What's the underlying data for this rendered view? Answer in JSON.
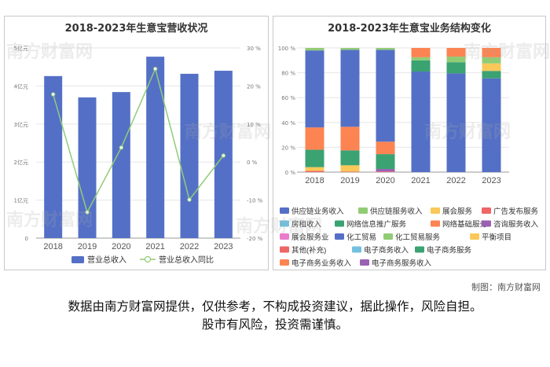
{
  "watermark": "南方财富网",
  "credit": "制图：南方财富网",
  "disclaimer": {
    "line1": "数据由南方财富网提供，仅供参考，不构成投资建议，据此操作，风险自担。",
    "line2": "股市有风险，投资需谨慎。"
  },
  "chart_data": [
    {
      "type": "bar",
      "title": "2018-2023年生意宝营收状况",
      "categories": [
        "2018",
        "2019",
        "2020",
        "2021",
        "2022",
        "2023"
      ],
      "series": [
        {
          "name": "营业总收入",
          "kind": "bar",
          "axis": "left",
          "color": "#5470c6",
          "values": [
            4.26,
            3.7,
            3.84,
            4.77,
            4.32,
            4.4
          ]
        },
        {
          "name": "营业总收入同比",
          "kind": "line",
          "axis": "right",
          "color": "#91cc75",
          "values": [
            17.8,
            -13.2,
            3.8,
            24.5,
            -9.9,
            1.7
          ]
        }
      ],
      "y_left": {
        "min": 0,
        "max": 5,
        "ticks": [
          "0",
          "1亿元",
          "2亿元",
          "3亿元",
          "4亿元",
          "5亿元"
        ]
      },
      "y_right": {
        "min": -20,
        "max": 30,
        "ticks": [
          "-20 %",
          "-10 %",
          "0 %",
          "10 %",
          "20 %",
          "30 %"
        ]
      },
      "grid": true,
      "legend_position": "bottom"
    },
    {
      "type": "bar",
      "stacked": true,
      "title": "2018-2023年生意宝业务结构变化",
      "categories": [
        "2018",
        "2019",
        "2020",
        "2021",
        "2022",
        "2023"
      ],
      "y": {
        "min": 0,
        "max": 100,
        "ticks": [
          "0 %",
          "20 %",
          "40 %",
          "60 %",
          "80 %",
          "100 %"
        ]
      },
      "series": [
        {
          "name": "其他(补充)",
          "color": "#ee6666",
          "values": [
            1.0,
            0.5,
            0.5,
            0,
            0,
            0
          ]
        },
        {
          "name": "电子商务服务收入",
          "color": "#9a60b4",
          "values": [
            0,
            0,
            2.0,
            0,
            0,
            0
          ]
        },
        {
          "name": "展会服务",
          "color": "#fac858",
          "values": [
            3.0,
            5.0,
            0,
            0,
            0,
            0
          ]
        },
        {
          "name": "网络信息推广服务",
          "color": "#3ba272",
          "values": [
            14.0,
            12.0,
            12.0,
            0,
            0,
            0
          ]
        },
        {
          "name": "网络基础服务",
          "color": "#fc8452",
          "values": [
            18.0,
            19.0,
            10.0,
            0,
            0,
            0
          ]
        },
        {
          "name": "供应链业务收入",
          "color": "#5470c6",
          "values": [
            62.0,
            62.0,
            74.0,
            81.0,
            79.5,
            75.5
          ]
        },
        {
          "name": "电子商务服务",
          "color": "#3ba272",
          "values": [
            0,
            0,
            0,
            9.0,
            9.0,
            6.0
          ]
        },
        {
          "name": "平衡项目",
          "color": "#fac858",
          "values": [
            0,
            0,
            0,
            0,
            0,
            6.0
          ]
        },
        {
          "name": "化工贸易服务",
          "color": "#91cc75",
          "values": [
            0,
            0,
            0,
            2.5,
            4.5,
            5.0
          ]
        },
        {
          "name": "电子商务业务收入",
          "color": "#fc8452",
          "values": [
            0,
            0,
            0,
            7.5,
            7.0,
            7.5
          ]
        },
        {
          "name": "供应链服务收入",
          "color": "#91cc75",
          "values": [
            2.0,
            1.5,
            1.5,
            0,
            0,
            0
          ]
        }
      ],
      "legend": [
        {
          "name": "供应链业务收入",
          "color": "#5470c6"
        },
        {
          "name": "供应链服务收入",
          "color": "#91cc75"
        },
        {
          "name": "展会服务",
          "color": "#fac858"
        },
        {
          "name": "广告发布服务",
          "color": "#ee6666"
        },
        {
          "name": "房租收入",
          "color": "#73c0de"
        },
        {
          "name": "网络信息推广服务",
          "color": "#3ba272"
        },
        {
          "name": "网络基础服务",
          "color": "#fc8452"
        },
        {
          "name": "咨询服务收入",
          "color": "#9a60b4"
        },
        {
          "name": "展会服务业",
          "color": "#ea7ccc"
        },
        {
          "name": "化工贸易",
          "color": "#5470c6"
        },
        {
          "name": "化工贸易服务",
          "color": "#91cc75"
        },
        {
          "name": "平衡项目",
          "color": "#fac858"
        },
        {
          "name": "其他(补充)",
          "color": "#ee6666"
        },
        {
          "name": "电子商务收入",
          "color": "#73c0de"
        },
        {
          "name": "电子商务服务",
          "color": "#3ba272"
        },
        {
          "name": "电子商务业务收入",
          "color": "#fc8452"
        },
        {
          "name": "电子商务服务收入",
          "color": "#9a60b4"
        }
      ],
      "grid": true,
      "legend_position": "bottom"
    }
  ]
}
